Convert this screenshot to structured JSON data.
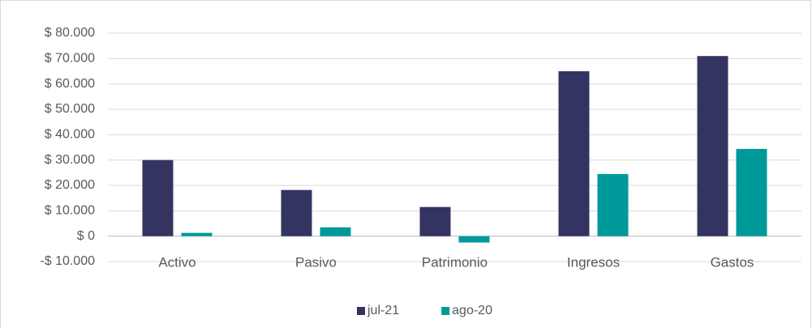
{
  "chart_data": {
    "type": "bar",
    "categories": [
      "Activo",
      "Pasivo",
      "Patrimonio",
      "Ingresos",
      "Gastos"
    ],
    "series": [
      {
        "name": "jul-21",
        "color": "#343463",
        "values": [
          30000,
          18200,
          11500,
          65000,
          71000
        ]
      },
      {
        "name": "ago-20",
        "color": "#009999",
        "values": [
          1300,
          3500,
          -2500,
          24500,
          34400
        ]
      }
    ],
    "ylim": [
      -10000,
      80000
    ],
    "yticks": [
      {
        "value": -10000,
        "label": "-$ 10.000"
      },
      {
        "value": 0,
        "label": "$ 0"
      },
      {
        "value": 10000,
        "label": "$ 10.000"
      },
      {
        "value": 20000,
        "label": "$ 20.000"
      },
      {
        "value": 30000,
        "label": "$ 30.000"
      },
      {
        "value": 40000,
        "label": "$ 40.000"
      },
      {
        "value": 50000,
        "label": "$ 50.000"
      },
      {
        "value": 60000,
        "label": "$ 60.000"
      },
      {
        "value": 70000,
        "label": "$ 70.000"
      },
      {
        "value": 80000,
        "label": "$ 80.000"
      }
    ],
    "grid": true,
    "legend": "bottom"
  }
}
